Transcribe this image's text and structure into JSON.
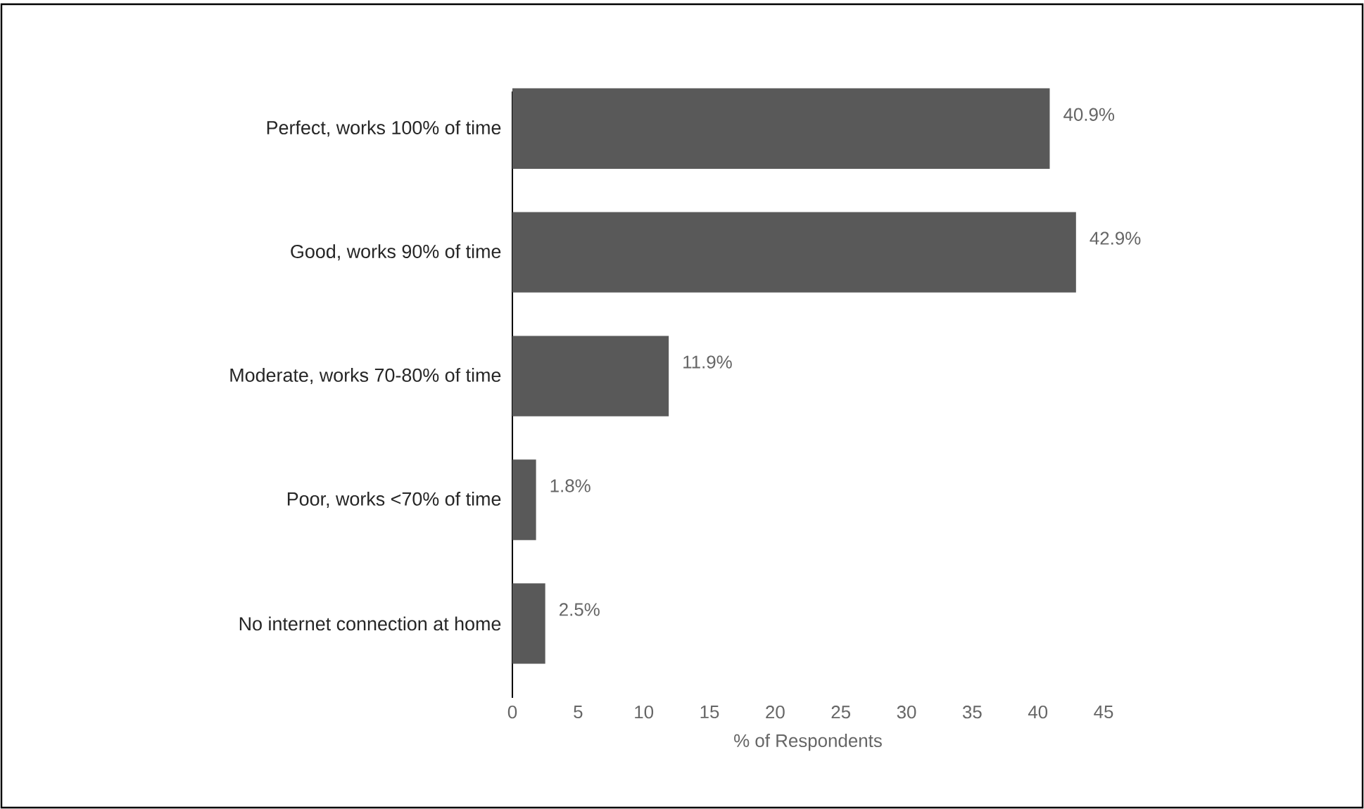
{
  "chart_data": {
    "type": "bar",
    "orientation": "horizontal",
    "categories": [
      "Perfect, works 100% of time",
      "Good, works 90% of time",
      "Moderate, works 70-80% of time",
      "Poor, works <70% of time",
      "No internet connection at home"
    ],
    "values": [
      40.9,
      42.9,
      11.9,
      1.8,
      2.5
    ],
    "value_labels": [
      "40.9%",
      "42.9%",
      "11.9%",
      "1.8%",
      "2.5%"
    ],
    "color": "#595959",
    "xlim": [
      0,
      45
    ],
    "xticks": [
      0,
      5,
      10,
      15,
      20,
      25,
      30,
      35,
      40,
      45
    ],
    "xlabel": "% of Respondents"
  }
}
